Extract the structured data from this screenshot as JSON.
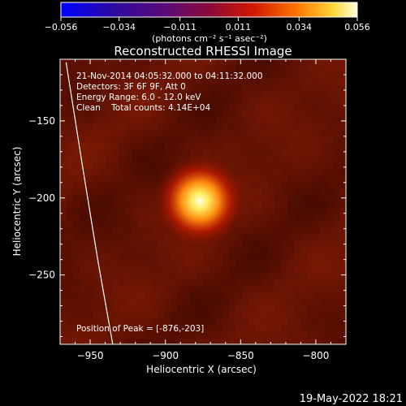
{
  "chart_data": {
    "type": "heatmap",
    "title": "Reconstructed RHESSI Image",
    "xlabel": "Heliocentric X (arcsec)",
    "ylabel": "Heliocentric Y (arcsec)",
    "xlim": [
      -970,
      -780
    ],
    "ylim": [
      -295,
      -110
    ],
    "x_ticks": [
      -950,
      -900,
      -850,
      -800
    ],
    "y_ticks": [
      -150,
      -200,
      -250
    ],
    "colorbar": {
      "min": -0.056,
      "max": 0.056,
      "ticks": [
        -0.056,
        -0.034,
        -0.011,
        0.011,
        0.034,
        0.056
      ],
      "tick_labels": [
        "−0.056",
        "−0.034",
        "−0.011",
        "0.011",
        "0.034",
        "0.056"
      ],
      "unit_label": "(photons cm⁻² s⁻¹ asec⁻²)"
    },
    "info_lines": [
      "21-Nov-2014 04:05:32.000 to 04:11:32.000",
      "Detectors: 3F 6F 9F, Att 0",
      "Energy Range: 6.0 - 12.0 keV",
      "Clean    Total counts: 4.14E+04"
    ],
    "peak_label": "Position of Peak = [-876,-203]",
    "peak": {
      "x": -876,
      "y": -203,
      "value": 0.056
    },
    "background_level": 0.011,
    "limb_curve": [
      [
        -966,
        -112
      ],
      [
        -955,
        -180
      ],
      [
        -945,
        -240
      ],
      [
        -935,
        -295
      ]
    ],
    "colors": {
      "background": "#000000",
      "image_base": "#5a0e00",
      "peak": "#ffffe0",
      "text": "#ffffff"
    }
  },
  "footer_timestamp": "19-May-2022 18:21"
}
